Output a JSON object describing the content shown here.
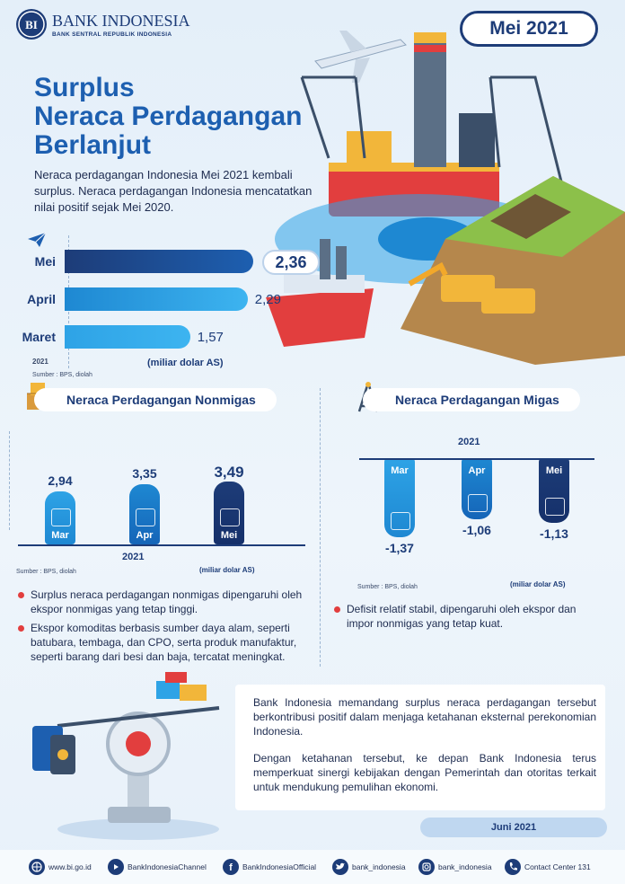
{
  "header": {
    "logo_name": "BANK INDONESIA",
    "logo_sub": "BANK SENTRAL REPUBLIK INDONESIA",
    "logo_mark": "BI",
    "date_label": "Mei 2021"
  },
  "title_lines": [
    "Surplus",
    "Neraca Perdagangan",
    "Berlanjut"
  ],
  "intro": "Neraca perdagangan Indonesia Mei 2021 kembali surplus. Neraca perdagangan Indonesia mencatatkan nilai positif sejak Mei 2020.",
  "icons": {
    "plane": "paper-plane-icon",
    "nonmigas": "cargo-boxes-icon",
    "migas": "oil-rig-icon",
    "trade": "handshake-trade-icon",
    "fuel": "fuel-jerrycan-icon"
  },
  "colors": {
    "navy": "#1d3c78",
    "blue": "#1e88d2",
    "mid_blue": "#1565b8",
    "light_blue": "#2ea3e6",
    "red_bullet": "#e23e3e",
    "title_blue": "#1d5fb0"
  },
  "chart_data": [
    {
      "type": "bar",
      "orientation": "horizontal",
      "categories": [
        "Mei",
        "April",
        "Maret"
      ],
      "values": [
        2.36,
        2.29,
        1.57
      ],
      "value_labels": [
        "2,36",
        "2,29",
        "1,57"
      ],
      "year_label": "2021",
      "unit": "(miliar dolar AS)",
      "source": "Sumber : BPS, diolah"
    },
    {
      "type": "bar",
      "title": "Neraca Perdagangan Nonmigas",
      "categories": [
        "Mar",
        "Apr",
        "Mei"
      ],
      "values": [
        2.94,
        3.35,
        3.49
      ],
      "value_labels": [
        "2,94",
        "3,35",
        "3,49"
      ],
      "xlabel": "2021",
      "unit": "(miliar dolar AS)",
      "source": "Sumber : BPS, diolah"
    },
    {
      "type": "bar",
      "title": "Neraca Perdagangan Migas",
      "categories": [
        "Mar",
        "Apr",
        "Mei"
      ],
      "values": [
        -1.37,
        -1.06,
        -1.13
      ],
      "value_labels": [
        "-1,37",
        "-1,06",
        "-1,13"
      ],
      "xlabel": "2021",
      "unit": "(miliar dolar AS)",
      "source": "Sumber : BPS, diolah"
    }
  ],
  "nonmigas_bullets": [
    "Surplus neraca perdagangan nonmigas dipengaruhi oleh ekspor nonmigas yang tetap tinggi.",
    "Ekspor komoditas berbasis sumber daya alam, seperti batubara, tembaga, dan CPO, serta produk manufaktur, seperti barang dari besi dan baja, tercatat meningkat."
  ],
  "migas_bullets": [
    "Defisit relatif stabil, dipengaruhi oleh ekspor dan impor nonmigas yang tetap kuat."
  ],
  "conclusion": [
    "Bank Indonesia memandang surplus neraca perdagangan tersebut berkontribusi positif dalam menjaga ketahanan eksternal perekonomian Indonesia.",
    "Dengan ketahanan tersebut, ke depan Bank Indonesia terus memperkuat sinergi kebijakan dengan Pemerintah dan otoritas terkait untuk mendukung pemulihan ekonomi."
  ],
  "publish_date": "Juni 2021",
  "footer": [
    {
      "icon": "globe-icon",
      "text": "www.bi.go.id"
    },
    {
      "icon": "youtube-icon",
      "text": "BankIndonesiaChannel"
    },
    {
      "icon": "facebook-icon",
      "text": "BankIndonesiaOfficial"
    },
    {
      "icon": "twitter-icon",
      "text": "bank_indonesia"
    },
    {
      "icon": "instagram-icon",
      "text": "bank_indonesia"
    },
    {
      "icon": "phone-icon",
      "text": "Contact Center 131"
    }
  ]
}
